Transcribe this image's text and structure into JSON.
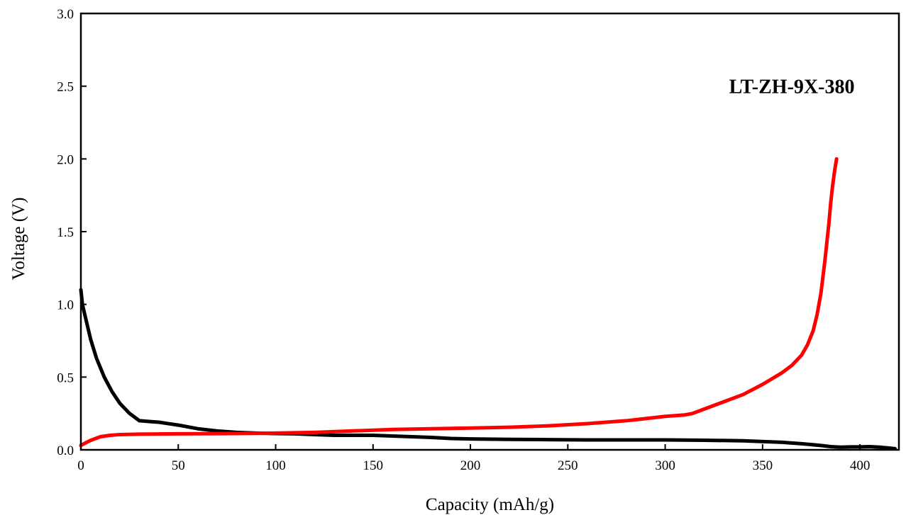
{
  "chart_data": {
    "type": "line",
    "xlabel": "Capacity (mAh/g)",
    "ylabel": "Voltage (V)",
    "xlim": [
      0,
      420
    ],
    "ylim": [
      0,
      3.0
    ],
    "xticks": [
      0,
      50,
      100,
      150,
      200,
      250,
      300,
      350,
      400
    ],
    "xtick_labels": [
      "0",
      "50",
      "100",
      "150",
      "200",
      "250",
      "300",
      "350",
      "400"
    ],
    "yticks": [
      0,
      0.5,
      1.0,
      1.5,
      2.0,
      2.5,
      3.0
    ],
    "ytick_labels": [
      "0.0",
      "0.5",
      "1.0",
      "1.5",
      "2.0",
      "2.5",
      "3.0"
    ],
    "grid": false,
    "annotations": [
      {
        "text": "LT-ZH-9X-380",
        "x": 365,
        "y": 2.5
      }
    ],
    "series": [
      {
        "color": "#000000",
        "x": [
          0,
          0.8,
          2,
          5,
          8,
          12,
          16,
          20,
          25,
          30,
          35,
          40,
          45,
          50,
          60,
          70,
          80,
          90,
          100,
          110,
          120,
          130,
          140,
          150,
          160,
          170,
          180,
          190,
          200,
          220,
          240,
          260,
          280,
          300,
          320,
          340,
          360,
          370,
          380,
          385,
          390,
          395,
          400,
          405,
          410,
          415,
          418
        ],
        "y": [
          1.1,
          1.0,
          0.93,
          0.76,
          0.63,
          0.5,
          0.4,
          0.32,
          0.25,
          0.2,
          0.195,
          0.19,
          0.18,
          0.17,
          0.145,
          0.13,
          0.12,
          0.115,
          0.112,
          0.11,
          0.105,
          0.1,
          0.1,
          0.1,
          0.095,
          0.09,
          0.085,
          0.078,
          0.075,
          0.072,
          0.07,
          0.068,
          0.068,
          0.068,
          0.066,
          0.062,
          0.052,
          0.042,
          0.03,
          0.022,
          0.018,
          0.02,
          0.02,
          0.022,
          0.018,
          0.012,
          0.008
        ]
      },
      {
        "color": "#ff0000",
        "x": [
          0,
          2,
          5,
          10,
          15,
          20,
          30,
          50,
          80,
          100,
          120,
          140,
          160,
          180,
          200,
          220,
          240,
          260,
          280,
          290,
          300,
          310,
          314,
          320,
          330,
          340,
          350,
          360,
          365,
          370,
          373,
          376,
          378,
          380,
          382,
          384,
          385,
          386,
          387,
          388
        ],
        "y": [
          0.03,
          0.045,
          0.065,
          0.09,
          0.1,
          0.105,
          0.108,
          0.11,
          0.112,
          0.115,
          0.12,
          0.13,
          0.14,
          0.145,
          0.15,
          0.155,
          0.165,
          0.18,
          0.2,
          0.215,
          0.23,
          0.24,
          0.25,
          0.28,
          0.33,
          0.38,
          0.45,
          0.53,
          0.58,
          0.65,
          0.72,
          0.82,
          0.93,
          1.08,
          1.3,
          1.55,
          1.7,
          1.82,
          1.92,
          2.0
        ]
      }
    ]
  }
}
